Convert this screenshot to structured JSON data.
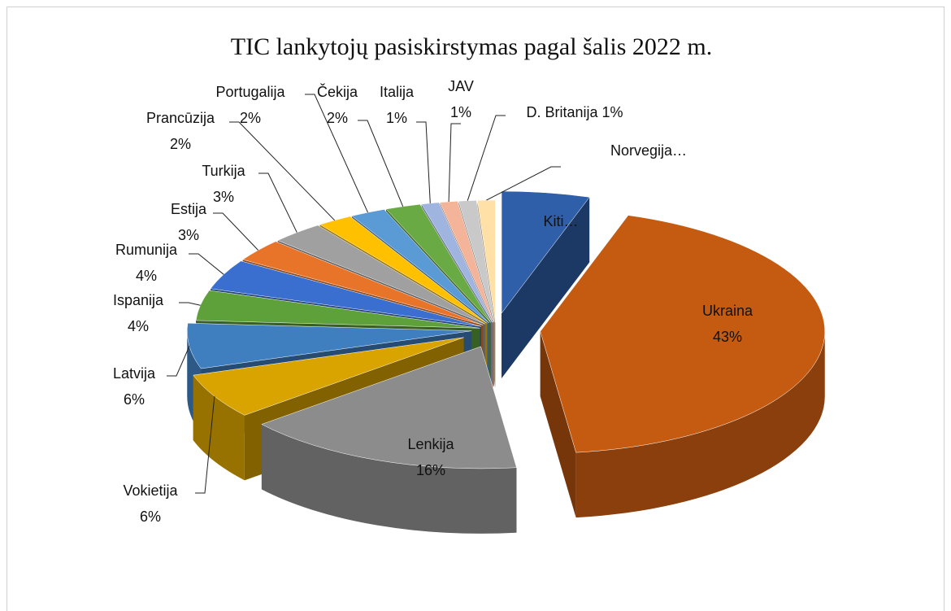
{
  "chart_data": {
    "type": "pie3d",
    "title": "TIC lankytojų pasiskirstymas pagal šalis 2022 m.",
    "categories": [
      "Kiti…",
      "Ukraina",
      "Lenkija",
      "Vokietija",
      "Latvija",
      "Ispanija",
      "Rumunija",
      "Estija",
      "Turkija",
      "Prancūzija",
      "Portugalija",
      "Čekija",
      "Italija",
      "JAV",
      "D. Britanija",
      "Norvegija…"
    ],
    "values": [
      5,
      43,
      16,
      6,
      6,
      4,
      4,
      3,
      3,
      2,
      2,
      2,
      1,
      1,
      1,
      1
    ],
    "value_labels": [
      null,
      "43%",
      "16%",
      "6%",
      "6%",
      "4%",
      "4%",
      "3%",
      "3%",
      "2%",
      "2%",
      "2%",
      "1%",
      "1%",
      "1%",
      null
    ],
    "colors": [
      "#2f5fa8",
      "#c55a11",
      "#8c8c8c",
      "#d9a300",
      "#3f7fbf",
      "#5ea03a",
      "#3a6fcf",
      "#e8742a",
      "#a0a0a0",
      "#ffc000",
      "#5b9bd5",
      "#6aaa45",
      "#9fb5e0",
      "#f4b49a",
      "#c9c9c9",
      "#ffe1a8"
    ]
  }
}
